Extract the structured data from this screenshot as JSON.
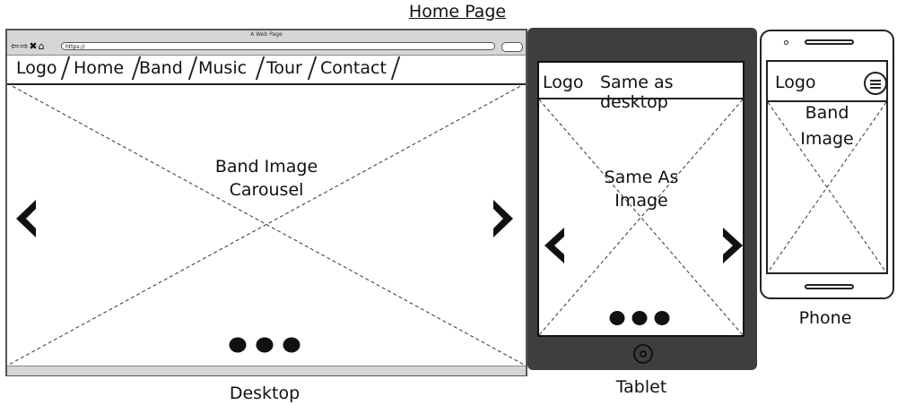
{
  "title": "Home Page",
  "desktop": {
    "browser_title": "A Web Page",
    "url": "https://",
    "nav_items": [
      "Logo",
      "Home",
      "Band",
      "Music",
      "Tour",
      "Contact"
    ],
    "carousel_line1": "Band Image",
    "carousel_line2": "Carousel",
    "caption": "Desktop"
  },
  "tablet": {
    "logo": "Logo",
    "nav_note": "Same as desktop",
    "image_line1": "Same As",
    "image_line2": "Image",
    "caption": "Tablet"
  },
  "phone": {
    "logo": "Logo",
    "image_line1": "Band",
    "image_line2": "Image",
    "caption": "Phone"
  },
  "icons": {
    "browser_nav": "back-forward-stop-home-icons",
    "prev": "chevron-left-icon",
    "next": "chevron-right-icon",
    "menu": "hamburger-menu-icon",
    "dots": "carousel-dots"
  }
}
